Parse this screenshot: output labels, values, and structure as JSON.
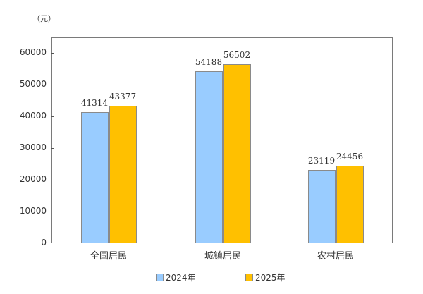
{
  "chart_data": {
    "type": "bar",
    "title": "",
    "unit_label": "（元）",
    "xlabel": "",
    "ylabel": "元",
    "ylim": [
      0,
      65000
    ],
    "yticks": [
      0,
      10000,
      20000,
      30000,
      40000,
      50000,
      60000
    ],
    "categories": [
      "全国居民",
      "城镇居民",
      "农村居民"
    ],
    "series": [
      {
        "name": "2024年",
        "color": "#99ccff",
        "values": [
          41314,
          54188,
          23119
        ]
      },
      {
        "name": "2025年",
        "color": "#ffc000",
        "values": [
          43377,
          56502,
          24456
        ]
      }
    ],
    "grid": false,
    "legend_position": "bottom"
  }
}
